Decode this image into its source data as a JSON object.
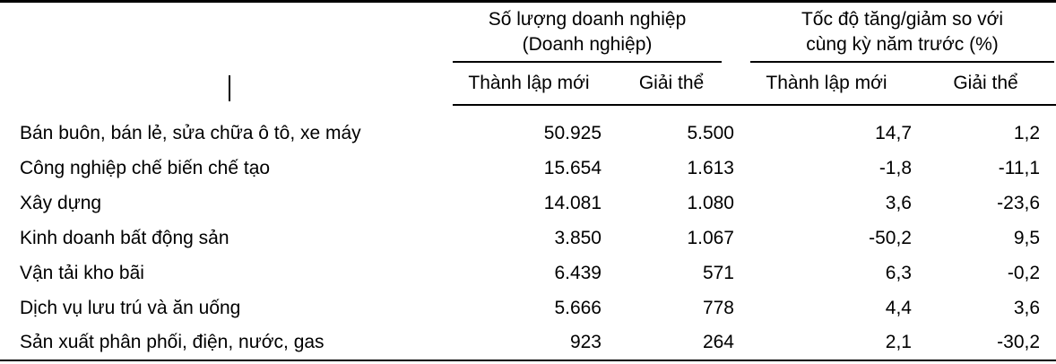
{
  "table": {
    "column_groups": [
      {
        "line1": "Số lượng doanh nghiệp",
        "line2": "(Doanh nghiệp)"
      },
      {
        "line1": "Tốc độ tăng/giảm so với",
        "line2": "cùng kỳ năm trước (%)"
      }
    ],
    "sub_headers": [
      "Thành lập mới",
      "Giải thể",
      "Thành lập mới",
      "Giải thể"
    ],
    "rows": [
      {
        "label": "Bán buôn, bán lẻ, sửa chữa ô tô, xe máy",
        "values": [
          "50.925",
          "5.500",
          "14,7",
          "1,2"
        ]
      },
      {
        "label": "Công nghiệp chế biến chế tạo",
        "values": [
          "15.654",
          "1.613",
          "-1,8",
          "-11,1"
        ]
      },
      {
        "label": "Xây dựng",
        "values": [
          "14.081",
          "1.080",
          "3,6",
          "-23,6"
        ]
      },
      {
        "label": "Kinh doanh bất động sản",
        "values": [
          "3.850",
          "1.067",
          "-50,2",
          "9,5"
        ]
      },
      {
        "label": "Vận tải kho bãi",
        "values": [
          "6.439",
          "571",
          "6,3",
          "-0,2"
        ]
      },
      {
        "label": "Dịch vụ lưu trú và ăn uống",
        "values": [
          "5.666",
          "778",
          "4,4",
          "3,6"
        ]
      },
      {
        "label": "Sản xuất phân phối, điện, nước, gas",
        "values": [
          "923",
          "264",
          "2,1",
          "-30,2"
        ]
      }
    ]
  },
  "colors": {
    "text": "#000000",
    "background": "#ffffff",
    "rule": "#000000"
  },
  "chart_data": {
    "type": "table",
    "title": "",
    "column_groups": [
      "Số lượng doanh nghiệp (Doanh nghiệp)",
      "Tốc độ tăng/giảm so với cùng kỳ năm trước (%)"
    ],
    "columns": [
      "Thành lập mới",
      "Giải thể",
      "Thành lập mới",
      "Giải thể"
    ],
    "categories": [
      "Bán buôn, bán lẻ, sửa chữa ô tô, xe máy",
      "Công nghiệp chế biến chế tạo",
      "Xây dựng",
      "Kinh doanh bất động sản",
      "Vận tải kho bãi",
      "Dịch vụ lưu trú và ăn uống",
      "Sản xuất phân phối, điện, nước, gas"
    ],
    "series": [
      {
        "name": "Thành lập mới (Doanh nghiệp)",
        "values": [
          50925,
          15654,
          14081,
          3850,
          6439,
          5666,
          923
        ]
      },
      {
        "name": "Giải thể (Doanh nghiệp)",
        "values": [
          5500,
          1613,
          1080,
          1067,
          571,
          778,
          264
        ]
      },
      {
        "name": "Thành lập mới (%)",
        "values": [
          14.7,
          -1.8,
          3.6,
          -50.2,
          6.3,
          4.4,
          2.1
        ]
      },
      {
        "name": "Giải thể (%)",
        "values": [
          1.2,
          -11.1,
          -23.6,
          9.5,
          -0.2,
          3.6,
          -30.2
        ]
      }
    ]
  }
}
